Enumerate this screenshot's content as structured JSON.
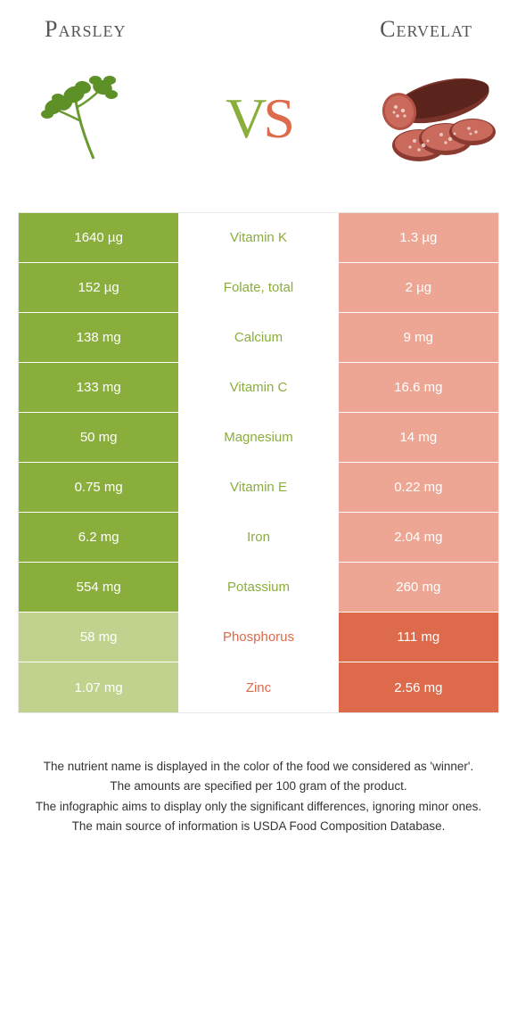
{
  "colors": {
    "left_win": "#8aae3c",
    "left_lose": "#c0d28e",
    "right_win": "#dd6a4a",
    "right_lose": "#eda693",
    "background": "#ffffff"
  },
  "header": {
    "left_title": "Parsley",
    "right_title": "Cervelat",
    "vs_v": "V",
    "vs_s": "S"
  },
  "rows": [
    {
      "left": "1640 µg",
      "label": "Vitamin K",
      "right": "1.3 µg",
      "winner": "left"
    },
    {
      "left": "152 µg",
      "label": "Folate, total",
      "right": "2 µg",
      "winner": "left"
    },
    {
      "left": "138 mg",
      "label": "Calcium",
      "right": "9 mg",
      "winner": "left"
    },
    {
      "left": "133 mg",
      "label": "Vitamin C",
      "right": "16.6 mg",
      "winner": "left"
    },
    {
      "left": "50 mg",
      "label": "Magnesium",
      "right": "14 mg",
      "winner": "left"
    },
    {
      "left": "0.75 mg",
      "label": "Vitamin E",
      "right": "0.22 mg",
      "winner": "left"
    },
    {
      "left": "6.2 mg",
      "label": "Iron",
      "right": "2.04 mg",
      "winner": "left"
    },
    {
      "left": "554 mg",
      "label": "Potassium",
      "right": "260 mg",
      "winner": "left"
    },
    {
      "left": "58 mg",
      "label": "Phosphorus",
      "right": "111 mg",
      "winner": "right"
    },
    {
      "left": "1.07 mg",
      "label": "Zinc",
      "right": "2.56 mg",
      "winner": "right"
    }
  ],
  "footnote": {
    "l1": "The nutrient name is displayed in the color of the food we considered as 'winner'.",
    "l2": "The amounts are specified per 100 gram of the product.",
    "l3": "The infographic aims to display only the significant differences, ignoring minor ones.",
    "l4": "The main source of information is USDA Food Composition Database."
  }
}
